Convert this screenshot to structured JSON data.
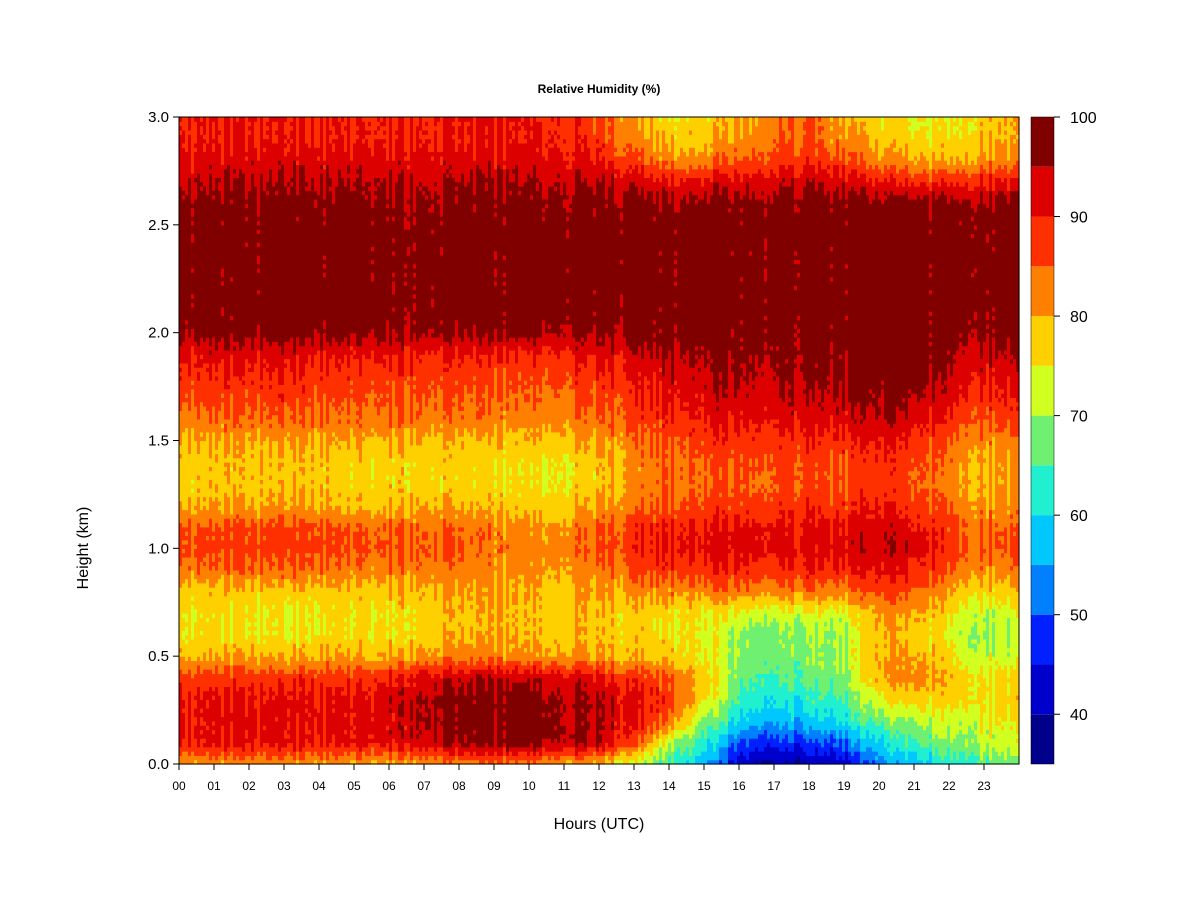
{
  "chart_data": {
    "type": "heatmap",
    "title": "Relative Humidity (%)",
    "xlabel": "Hours (UTC)",
    "ylabel": "Height (km)",
    "xlim": [
      0,
      24
    ],
    "ylim": [
      0,
      3
    ],
    "x_ticks": [
      {
        "value": 0,
        "label": "00"
      },
      {
        "value": 1,
        "label": "01"
      },
      {
        "value": 2,
        "label": "02"
      },
      {
        "value": 3,
        "label": "03"
      },
      {
        "value": 4,
        "label": "04"
      },
      {
        "value": 5,
        "label": "05"
      },
      {
        "value": 6,
        "label": "06"
      },
      {
        "value": 7,
        "label": "07"
      },
      {
        "value": 8,
        "label": "08"
      },
      {
        "value": 9,
        "label": "09"
      },
      {
        "value": 10,
        "label": "10"
      },
      {
        "value": 11,
        "label": "11"
      },
      {
        "value": 12,
        "label": "12"
      },
      {
        "value": 13,
        "label": "13"
      },
      {
        "value": 14,
        "label": "14"
      },
      {
        "value": 15,
        "label": "15"
      },
      {
        "value": 16,
        "label": "16"
      },
      {
        "value": 17,
        "label": "17"
      },
      {
        "value": 18,
        "label": "18"
      },
      {
        "value": 19,
        "label": "19"
      },
      {
        "value": 20,
        "label": "20"
      },
      {
        "value": 21,
        "label": "21"
      },
      {
        "value": 22,
        "label": "22"
      },
      {
        "value": 23,
        "label": "23"
      }
    ],
    "y_ticks": [
      {
        "value": 0.0,
        "label": "0.0"
      },
      {
        "value": 0.5,
        "label": "0.5"
      },
      {
        "value": 1.0,
        "label": "1.0"
      },
      {
        "value": 1.5,
        "label": "1.5"
      },
      {
        "value": 2.0,
        "label": "2.0"
      },
      {
        "value": 2.5,
        "label": "2.5"
      },
      {
        "value": 3.0,
        "label": "3.0"
      }
    ],
    "colorbar": {
      "levels": [
        35,
        40,
        45,
        50,
        55,
        60,
        65,
        70,
        75,
        80,
        85,
        90,
        95,
        100
      ],
      "colors": [
        "#00008B",
        "#0000CD",
        "#0020FF",
        "#0080FF",
        "#00C8FF",
        "#20F0D0",
        "#70F070",
        "#D0FF20",
        "#FFD000",
        "#FF8000",
        "#FF3000",
        "#DC0000",
        "#800000"
      ],
      "tick_labels": [
        {
          "value": 40,
          "label": "40"
        },
        {
          "value": 50,
          "label": "50"
        },
        {
          "value": 60,
          "label": "60"
        },
        {
          "value": 70,
          "label": "70"
        },
        {
          "value": 80,
          "label": "80"
        },
        {
          "value": 90,
          "label": "90"
        },
        {
          "value": 100,
          "label": "100"
        }
      ]
    },
    "x": [
      0,
      1,
      2,
      3,
      4,
      5,
      6,
      7,
      8,
      9,
      10,
      11,
      12,
      13,
      14,
      15,
      16,
      17,
      18,
      19,
      20,
      21,
      22,
      23,
      24
    ],
    "y": [
      0.0,
      0.1,
      0.2,
      0.3,
      0.4,
      0.5,
      0.6,
      0.7,
      0.8,
      0.9,
      1.0,
      1.1,
      1.2,
      1.3,
      1.4,
      1.5,
      1.6,
      1.7,
      1.8,
      1.9,
      2.0,
      2.1,
      2.2,
      2.3,
      2.4,
      2.5,
      2.6,
      2.7,
      2.8,
      2.9,
      3.0
    ],
    "z": [
      [
        81,
        81,
        81,
        81,
        81,
        80,
        80,
        82,
        82,
        82,
        82,
        80,
        78,
        72,
        64,
        57,
        42,
        40,
        40,
        42,
        52,
        57,
        62,
        66,
        66
      ],
      [
        91,
        91,
        91,
        91,
        91,
        91,
        92,
        94,
        96,
        97,
        97,
        96,
        94,
        86,
        72,
        62,
        50,
        48,
        48,
        50,
        60,
        64,
        68,
        72,
        72
      ],
      [
        91,
        91,
        92,
        91,
        91,
        92,
        92,
        96,
        97,
        97,
        98,
        96,
        94,
        91,
        84,
        70,
        60,
        57,
        57,
        61,
        67,
        70,
        72,
        74,
        74
      ],
      [
        91,
        91,
        91,
        91,
        91,
        91,
        93,
        96,
        97,
        97,
        97,
        96,
        94,
        91,
        88,
        76,
        64,
        62,
        62,
        65,
        74,
        77,
        77,
        77,
        77
      ],
      [
        88,
        88,
        88,
        88,
        88,
        88,
        90,
        93,
        94,
        94,
        94,
        93,
        91,
        88,
        86,
        78,
        68,
        66,
        66,
        68,
        80,
        82,
        79,
        76,
        76
      ],
      [
        80,
        80,
        80,
        79,
        80,
        80,
        80,
        82,
        82,
        82,
        81,
        81,
        80,
        79,
        78,
        75,
        70,
        68,
        68,
        70,
        80,
        80,
        76,
        72,
        72
      ],
      [
        76,
        76,
        76,
        74,
        76,
        76,
        76,
        78,
        79,
        79,
        79,
        79,
        78,
        77,
        76,
        74,
        70,
        69,
        69,
        70,
        79,
        78,
        74,
        70,
        70
      ],
      [
        76,
        76,
        76,
        74,
        76,
        76,
        76,
        78,
        79,
        79,
        79,
        79,
        78,
        77,
        77,
        75,
        74,
        73,
        73,
        73,
        81,
        80,
        76,
        72,
        72
      ],
      [
        78,
        78,
        78,
        77,
        78,
        78,
        78,
        80,
        80,
        79,
        79,
        79,
        80,
        81,
        82,
        82,
        84,
        83,
        83,
        82,
        87,
        84,
        80,
        77,
        77
      ],
      [
        84,
        84,
        84,
        84,
        84,
        83,
        83,
        84,
        83,
        81,
        81,
        81,
        83,
        85,
        88,
        88,
        90,
        89,
        89,
        88,
        92,
        89,
        85,
        82,
        82
      ],
      [
        87,
        87,
        87,
        87,
        87,
        86,
        86,
        86,
        85,
        83,
        82,
        83,
        85,
        88,
        91,
        91,
        93,
        93,
        92,
        92,
        95,
        92,
        88,
        85,
        85
      ],
      [
        86,
        86,
        86,
        86,
        86,
        85,
        85,
        85,
        84,
        82,
        81,
        82,
        84,
        87,
        90,
        90,
        92,
        92,
        91,
        91,
        94,
        91,
        87,
        84,
        84
      ],
      [
        80,
        80,
        80,
        80,
        80,
        79,
        79,
        80,
        79,
        78,
        77,
        78,
        80,
        83,
        86,
        86,
        88,
        88,
        88,
        87,
        90,
        87,
        84,
        81,
        81
      ],
      [
        78,
        78,
        78,
        78,
        78,
        77,
        77,
        78,
        77,
        76,
        75,
        76,
        78,
        81,
        84,
        84,
        86,
        86,
        86,
        85,
        88,
        85,
        82,
        80,
        80
      ],
      [
        78,
        78,
        78,
        78,
        78,
        77,
        77,
        78,
        77,
        76,
        75,
        76,
        78,
        81,
        84,
        85,
        87,
        87,
        87,
        86,
        89,
        86,
        83,
        80,
        80
      ],
      [
        80,
        80,
        80,
        80,
        80,
        80,
        80,
        80,
        79,
        78,
        78,
        79,
        80,
        83,
        86,
        87,
        89,
        89,
        89,
        88,
        91,
        88,
        85,
        82,
        82
      ],
      [
        84,
        84,
        84,
        84,
        84,
        84,
        84,
        84,
        83,
        82,
        82,
        83,
        84,
        86,
        89,
        90,
        92,
        92,
        92,
        92,
        95,
        92,
        89,
        86,
        86
      ],
      [
        87,
        87,
        87,
        87,
        86,
        86,
        86,
        86,
        85,
        84,
        84,
        85,
        86,
        88,
        91,
        92,
        94,
        94,
        94,
        94,
        97,
        95,
        92,
        89,
        89
      ],
      [
        89,
        89,
        89,
        89,
        88,
        88,
        88,
        88,
        87,
        86,
        86,
        87,
        88,
        90,
        93,
        94,
        96,
        96,
        96,
        96,
        98,
        97,
        94,
        91,
        91
      ],
      [
        92,
        92,
        92,
        92,
        91,
        91,
        91,
        91,
        90,
        89,
        89,
        90,
        91,
        93,
        95,
        96,
        97,
        97,
        97,
        97,
        98,
        98,
        96,
        94,
        94
      ],
      [
        97,
        97,
        97,
        97,
        97,
        97,
        97,
        97,
        96,
        96,
        96,
        96,
        96,
        97,
        98,
        98,
        98,
        98,
        98,
        98,
        98,
        98,
        98,
        97,
        97
      ],
      [
        98,
        98,
        98,
        98,
        98,
        98,
        98,
        98,
        98,
        98,
        98,
        98,
        98,
        98,
        98,
        98,
        98,
        98,
        98,
        98,
        98,
        98,
        98,
        98,
        98
      ],
      [
        98,
        98,
        98,
        98,
        98,
        98,
        98,
        98,
        98,
        98,
        98,
        98,
        98,
        98,
        98,
        98,
        98,
        98,
        98,
        98,
        98,
        98,
        98,
        98,
        98
      ],
      [
        98,
        98,
        98,
        98,
        98,
        98,
        98,
        98,
        98,
        98,
        98,
        98,
        98,
        98,
        98,
        98,
        98,
        98,
        98,
        98,
        98,
        98,
        98,
        98,
        98
      ],
      [
        98,
        98,
        98,
        98,
        98,
        98,
        98,
        98,
        98,
        98,
        98,
        98,
        98,
        98,
        98,
        98,
        98,
        98,
        98,
        98,
        98,
        98,
        98,
        98,
        98
      ],
      [
        98,
        98,
        98,
        98,
        98,
        98,
        98,
        98,
        98,
        98,
        98,
        98,
        98,
        98,
        98,
        98,
        98,
        98,
        98,
        98,
        98,
        98,
        98,
        98,
        98
      ],
      [
        97,
        97,
        97,
        97,
        97,
        97,
        97,
        97,
        97,
        97,
        97,
        97,
        97,
        97,
        97,
        97,
        98,
        98,
        98,
        97,
        97,
        97,
        97,
        97,
        97
      ],
      [
        95,
        95,
        95,
        95,
        95,
        95,
        95,
        95,
        95,
        95,
        95,
        95,
        95,
        93,
        91,
        91,
        93,
        94,
        94,
        93,
        91,
        89,
        89,
        90,
        90
      ],
      [
        92,
        92,
        92,
        92,
        92,
        92,
        92,
        92,
        92,
        92,
        92,
        92,
        90,
        86,
        82,
        82,
        86,
        88,
        88,
        86,
        82,
        80,
        80,
        82,
        82
      ],
      [
        90,
        90,
        90,
        90,
        90,
        90,
        90,
        90,
        90,
        90,
        90,
        90,
        87,
        82,
        78,
        78,
        82,
        85,
        85,
        82,
        78,
        76,
        76,
        79,
        79
      ],
      [
        90,
        90,
        90,
        90,
        90,
        90,
        90,
        90,
        90,
        90,
        90,
        90,
        86,
        80,
        76,
        76,
        80,
        84,
        84,
        80,
        76,
        74,
        74,
        78,
        78
      ]
    ]
  }
}
